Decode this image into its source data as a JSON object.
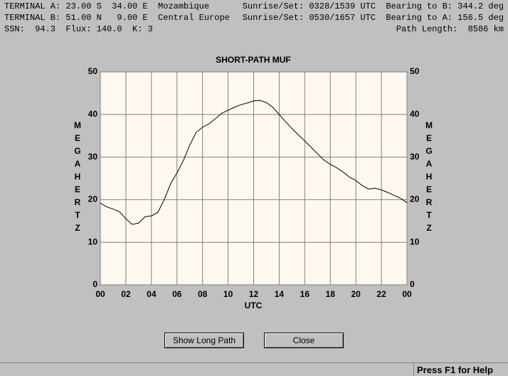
{
  "header": {
    "rows": [
      {
        "left": "TERMINAL A: 23.00 S  34.00 E  Mozambique",
        "right": "Sunrise/Set: 0328/1539 UTC  Bearing to B: 344.2 deg"
      },
      {
        "left": "TERMINAL B: 51.00 N   9.00 E  Central Europe",
        "right": "Sunrise/Set: 0530/1657 UTC  Bearing to A: 156.5 deg"
      },
      {
        "left": "SSN:  94.3  Flux: 140.0  K: 3",
        "right": "Path Length:  8586 km"
      }
    ]
  },
  "chart_data": {
    "type": "line",
    "title": "SHORT-PATH MUF",
    "x_label": "UTC",
    "y_label": "MEGAHERTZ",
    "xlim": [
      0,
      24
    ],
    "ylim": [
      0,
      50
    ],
    "grid": true,
    "color": "#000000",
    "xticks": [
      {
        "value": 0,
        "label": "00"
      },
      {
        "value": 2,
        "label": "02"
      },
      {
        "value": 4,
        "label": "04"
      },
      {
        "value": 6,
        "label": "06"
      },
      {
        "value": 8,
        "label": "08"
      },
      10,
      12,
      14,
      16,
      18,
      20,
      22,
      {
        "value": 24,
        "label": "00"
      }
    ],
    "yticks": [
      0,
      10,
      20,
      30,
      40,
      50
    ],
    "x": [
      0,
      0.5,
      1,
      1.5,
      2,
      2.5,
      3,
      3.5,
      4,
      4.5,
      5,
      5.5,
      6,
      6.5,
      7,
      7.5,
      8,
      8.5,
      9,
      9.5,
      10,
      10.5,
      11,
      11.5,
      12,
      12.5,
      13,
      13.5,
      14,
      14.5,
      15,
      15.5,
      16,
      16.5,
      17,
      17.5,
      18,
      18.5,
      19,
      19.5,
      20,
      20.5,
      21,
      21.5,
      22,
      22.5,
      23,
      23.5,
      24
    ],
    "values": [
      19.2,
      18.3,
      17.8,
      17.2,
      15.5,
      14.2,
      14.5,
      16.0,
      16.2,
      17.0,
      20.0,
      23.7,
      26.3,
      29.2,
      32.8,
      35.8,
      37.0,
      37.8,
      39.0,
      40.3,
      41.0,
      41.7,
      42.3,
      42.7,
      43.2,
      43.3,
      42.8,
      41.7,
      40.0,
      38.3,
      36.7,
      35.2,
      33.8,
      32.3,
      30.8,
      29.3,
      28.3,
      27.5,
      26.5,
      25.3,
      24.5,
      23.3,
      22.5,
      22.7,
      22.3,
      21.7,
      21.0,
      20.3,
      19.3
    ]
  },
  "buttons": [
    "Show Long Path",
    "Close"
  ],
  "status": "Press F1 for Help"
}
